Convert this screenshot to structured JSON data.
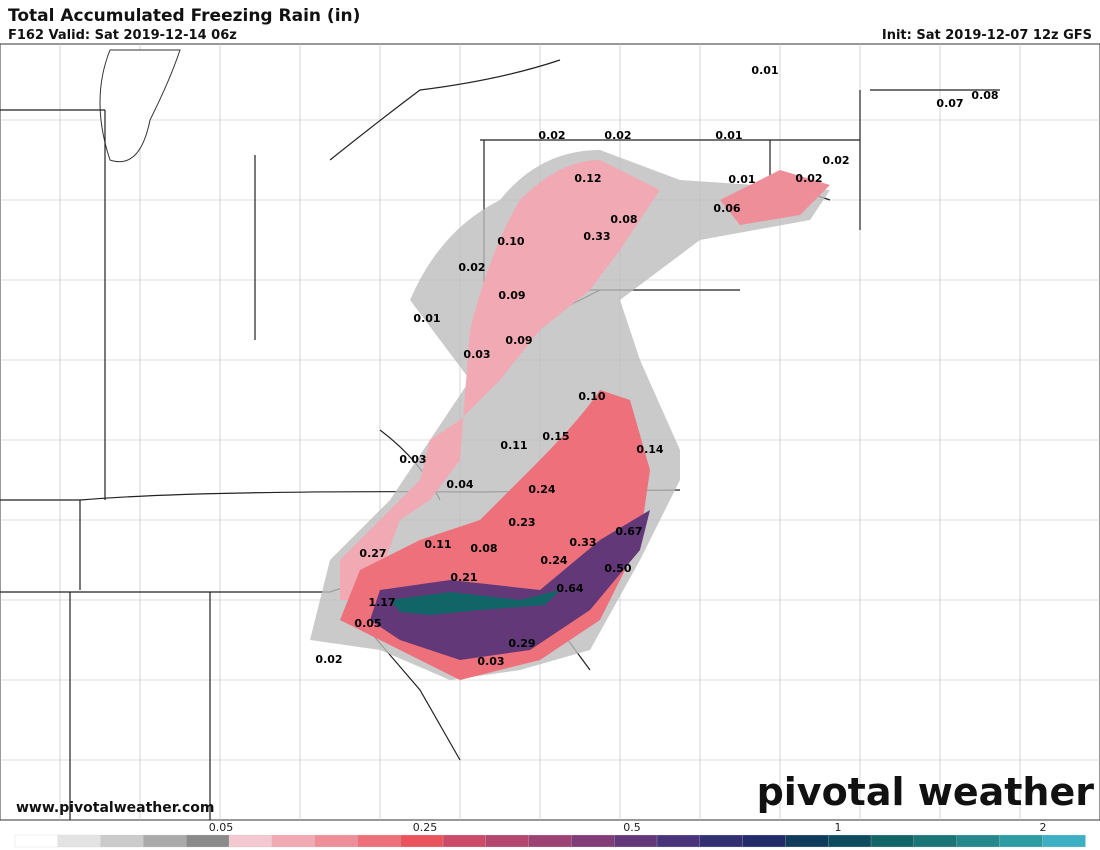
{
  "header": {
    "title": "Total Accumulated Freezing Rain (in)",
    "valid": "F162 Valid: Sat 2019-12-14 06z",
    "init": "Init: Sat 2019-12-07 12z GFS"
  },
  "point_labels": [
    "0.01",
    "0.07",
    "0.08",
    "0.02",
    "0.02",
    "0.01",
    "0.02",
    "0.12",
    "0.01",
    "0.02",
    "0.08",
    "0.06",
    "0.10",
    "0.33",
    "0.02",
    "0.09",
    "0.01",
    "0.09",
    "0.03",
    "0.10",
    "0.15",
    "0.11",
    "0.14",
    "0.03",
    "0.04",
    "0.24",
    "0.23",
    "0.67",
    "0.27",
    "0.11",
    "0.08",
    "0.33",
    "0.24",
    "0.50",
    "0.21",
    "0.64",
    "1.17",
    "0.05",
    "0.29",
    "0.02",
    "0.03"
  ],
  "footer": {
    "website": "www.pivotalweather.com",
    "logo": "pivotal weather"
  },
  "colorbar": {
    "colors": [
      "#ffffff",
      "#e3e3e3",
      "#cbcbcb",
      "#aaaaaa",
      "#8a8a8a",
      "#f4c8d0",
      "#f1aab4",
      "#ee8e99",
      "#ee707a",
      "#ea525c",
      "#cc4b68",
      "#b4476f",
      "#9c4374",
      "#803d78",
      "#623879",
      "#48347a",
      "#323072",
      "#202b68",
      "#103c5c",
      "#0c4c5e",
      "#126567",
      "#1a7676",
      "#24888c",
      "#2d9ca2",
      "#3cb0c2"
    ],
    "labels": [
      "0.05",
      "0.25",
      "0.5",
      "1",
      "2"
    ]
  }
}
